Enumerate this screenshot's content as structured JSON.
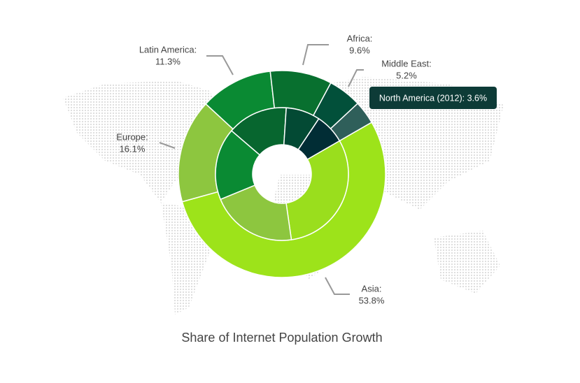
{
  "chart_data": {
    "type": "donut",
    "title": "Share of Internet Population Growth",
    "tooltip": "North America (2012): 3.6%",
    "categories": [
      "Asia:",
      "Europe:",
      "Latin America:",
      "Africa:",
      "Middle East:",
      null
    ],
    "series": [
      {
        "values": [
          53.8,
          16.1,
          11.3,
          9.6,
          5.2,
          3.6
        ],
        "value_labels": [
          "53.8%",
          "16.1%",
          "11.3%",
          "9.6%",
          "5.2%",
          null
        ],
        "colors": [
          "#9de31a",
          "#8dc63f",
          "#0a8a33",
          "#08702f",
          "#02503a",
          "#2f5f5a"
        ]
      },
      {
        "values": [
          31,
          21,
          17.5,
          14.7,
          8.3,
          7.3
        ],
        "colors": [
          "#9ade1d",
          "#8dc63f",
          "#0a8a33",
          "#07662f",
          "#034a34",
          "#012d35"
        ]
      }
    ]
  }
}
